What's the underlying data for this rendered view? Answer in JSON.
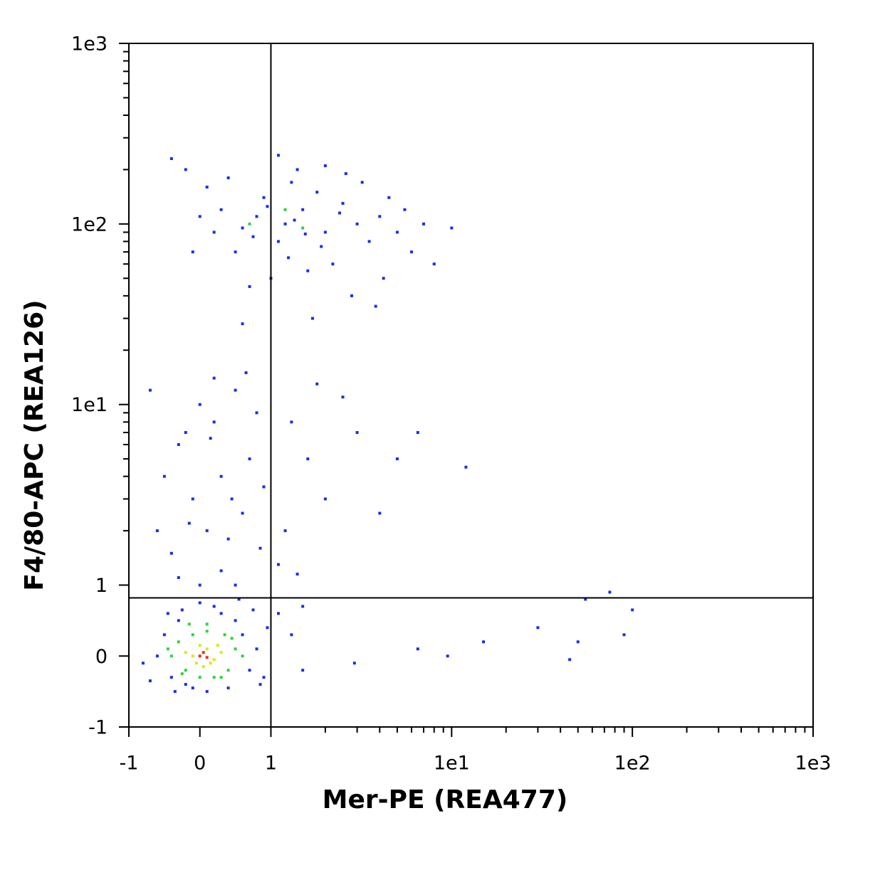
{
  "chart_data": {
    "type": "scatter",
    "xlabel": "Mer-PE (REA477)",
    "ylabel": "F4/80-APC (REA126)",
    "xscale": "biexponential",
    "yscale": "biexponential",
    "xlim": [
      -1,
      1000
    ],
    "ylim": [
      -1,
      1000
    ],
    "xticks": [
      -1,
      0,
      1,
      {
        "value": 10,
        "label": "1e1"
      },
      {
        "value": 100,
        "label": "1e2"
      },
      {
        "value": 1000,
        "label": "1e3"
      }
    ],
    "yticks": [
      -1,
      0,
      1,
      {
        "value": 10,
        "label": "1e1"
      },
      {
        "value": 100,
        "label": "1e2"
      },
      {
        "value": 1000,
        "label": "1e3"
      }
    ],
    "xminorticks": [
      2,
      3,
      4,
      5,
      6,
      7,
      8,
      9,
      20,
      30,
      40,
      50,
      60,
      70,
      80,
      90,
      200,
      300,
      400,
      500,
      600,
      700,
      800,
      900
    ],
    "yminorticks": [
      2,
      3,
      4,
      5,
      6,
      7,
      8,
      9,
      20,
      30,
      40,
      50,
      60,
      70,
      80,
      90,
      200,
      300,
      400,
      500,
      600,
      700,
      800,
      900
    ],
    "gates": {
      "x": 1,
      "y": 0.82
    },
    "series": [
      {
        "color": "#1a2ee8",
        "x": [
          1.2,
          1.5,
          2,
          1.1,
          0.8,
          0.6,
          2.5,
          3,
          1.8,
          1.3,
          0.9,
          0.5,
          0.3,
          0.2,
          0.1,
          -0.2,
          -0.4,
          3.5,
          4,
          5,
          6,
          7,
          8,
          4.5,
          2.2,
          1.6,
          1.0,
          0.7,
          2.8,
          1.4,
          2.0,
          1.1,
          0.4,
          0.0,
          -0.1,
          3.2,
          2.6,
          1.9,
          1.25,
          0.95,
          5.5,
          4.2,
          3.8,
          1.7,
          0.6,
          10,
          1.35,
          2.4,
          0.75,
          1.55,
          0.0,
          0.2,
          -0.3,
          0.5,
          0.3,
          -0.1,
          0.7,
          0.1,
          -0.4,
          0.4,
          0.6,
          -0.2,
          0.8,
          0.2,
          -0.5,
          0.9,
          1.3,
          1.6,
          2,
          1.2,
          2.5,
          3,
          4,
          1.1,
          0.3,
          -0.3,
          0.0,
          0.5,
          -0.6,
          0.15,
          -0.7,
          0.65,
          1.8,
          5,
          6.5,
          12,
          0.45,
          -0.15,
          0.85,
          1.4,
          -0.6,
          -0.5,
          -0.4,
          -0.3,
          -0.2,
          0.6,
          0.7,
          0.5,
          0.4,
          0.8,
          0.9,
          0.2,
          0.0,
          -0.1,
          0.3,
          -0.7,
          -0.8,
          0.95,
          0.1,
          -0.35,
          1.1,
          1.3,
          1.5,
          2.9,
          1.5,
          6.5,
          9.5,
          15,
          30,
          45,
          50,
          55,
          75,
          90,
          100,
          0.55,
          -0.45,
          0.75,
          -0.25,
          0.85
        ],
        "y": [
          100,
          120,
          90,
          80,
          110,
          95,
          130,
          100,
          150,
          170,
          140,
          70,
          120,
          90,
          160,
          200,
          230,
          80,
          110,
          90,
          70,
          100,
          60,
          140,
          60,
          55,
          50,
          45,
          40,
          200,
          210,
          240,
          180,
          110,
          70,
          170,
          190,
          75,
          65,
          125,
          120,
          50,
          35,
          30,
          28,
          95,
          105,
          115,
          85,
          88,
          10,
          8,
          6,
          12,
          4,
          3,
          5,
          2,
          1.5,
          1.8,
          2.5,
          7,
          9,
          14,
          4,
          3.5,
          8,
          5,
          3,
          2,
          11,
          7,
          2.5,
          1.3,
          1.2,
          1.1,
          1.0,
          1.0,
          2,
          6.5,
          12,
          15,
          13,
          5,
          7,
          4.5,
          3,
          2.2,
          1.6,
          1.15,
          0,
          0.3,
          -0.3,
          0.5,
          -0.4,
          0.3,
          -0.2,
          0.5,
          -0.45,
          0.1,
          -0.3,
          0.7,
          0.75,
          -0.45,
          0.6,
          -0.35,
          -0.1,
          0.4,
          -0.5,
          -0.5,
          0.6,
          0.3,
          0.7,
          -0.1,
          -0.2,
          0.1,
          0,
          0.2,
          0.4,
          -0.05,
          0.2,
          0.8,
          0.9,
          0.3,
          0.65,
          0.8,
          0.6,
          0.65,
          0.65,
          -0.4
        ]
      },
      {
        "color": "#2fd33a",
        "x": [
          -0.4,
          -0.3,
          -0.2,
          0.5,
          0.4,
          0.45,
          0.1,
          -0.1,
          0.2,
          -0.25,
          0.6,
          -0.45,
          0.35,
          0.0,
          0.3,
          0.1,
          -0.15,
          1.2,
          0.7,
          1.5
        ],
        "y": [
          0,
          0.2,
          -0.2,
          0.1,
          -0.2,
          0.25,
          0.35,
          0.3,
          -0.3,
          -0.25,
          0,
          0.1,
          0.3,
          -0.3,
          -0.3,
          0.45,
          0.45,
          120,
          100,
          95
        ]
      },
      {
        "color": "#d8e81a",
        "x": [
          -0.1,
          0.1,
          0.2,
          0.0,
          -0.2,
          0.3,
          0.05,
          0.15,
          -0.05,
          0.25
        ],
        "y": [
          0,
          0.1,
          -0.05,
          0.15,
          0.05,
          0.05,
          -0.15,
          -0.1,
          -0.1,
          0.15
        ]
      },
      {
        "color": "#e8321a",
        "x": [
          0.0,
          0.1,
          0.05
        ],
        "y": [
          0.0,
          -0.02,
          0.05
        ]
      }
    ]
  }
}
